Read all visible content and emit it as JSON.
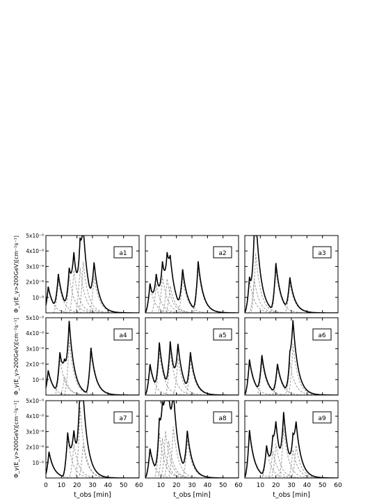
{
  "figure": {
    "ylabel": "Φ_γ(E_γ>200GeV)[cm⁻²s⁻¹]",
    "xlabel": "t_obs [min]"
  },
  "chart_data": {
    "type": "line",
    "shared_axes": true,
    "xlim": [
      0,
      60
    ],
    "ylim": [
      0,
      5e-09
    ],
    "x_ticks": [
      0,
      10,
      20,
      30,
      40,
      50,
      60
    ],
    "x_tick_labels_row3": [
      "0",
      "10",
      "20",
      "30",
      "40",
      "50",
      "60"
    ],
    "x_tick_labels_row3_col_other": [
      "10",
      "20",
      "30",
      "40",
      "50",
      "60"
    ],
    "y_ticks": [
      1e-09,
      2e-09,
      3e-09,
      4e-09,
      5e-09
    ],
    "y_tick_labels": [
      "10⁻⁹",
      "2x10⁻⁹",
      "3x10⁻⁹",
      "4x10⁻⁹",
      "5x10⁻⁹"
    ],
    "total_style": "solid-black",
    "component_style": "dashed-gray",
    "panels": [
      {
        "label": "a1",
        "flares": [
          [
            1.5,
            1.7
          ],
          [
            8,
            2.3
          ],
          [
            15,
            2.6
          ],
          [
            22,
            3.2
          ],
          [
            31,
            2.6
          ]
        ],
        "extra": [
          [
            18,
            3.0
          ],
          [
            24,
            3.6
          ]
        ]
      },
      {
        "label": "a2",
        "flares": [
          [
            3,
            1.9
          ],
          [
            7,
            2.0
          ],
          [
            11,
            2.6
          ],
          [
            14,
            2.4
          ],
          [
            24,
            2.5
          ],
          [
            34,
            3.2
          ]
        ],
        "extra": [
          [
            16,
            1.9
          ]
        ]
      },
      {
        "label": "a3",
        "flares": [
          [
            3,
            2.3
          ],
          [
            7,
            4.2
          ],
          [
            20,
            3.1
          ],
          [
            29,
            2.1
          ]
        ],
        "extra": [
          [
            6,
            2.4
          ]
        ]
      },
      {
        "label": "a4",
        "flares": [
          [
            1.5,
            1.6
          ],
          [
            9,
            2.6
          ],
          [
            15,
            3.9
          ],
          [
            29,
            3.0
          ]
        ],
        "extra": [
          [
            12,
            1.3
          ]
        ]
      },
      {
        "label": "a5",
        "flares": [
          [
            3,
            2.0
          ],
          [
            9,
            3.1
          ],
          [
            16,
            3.1
          ],
          [
            21,
            2.6
          ],
          [
            29,
            2.5
          ]
        ],
        "extra": []
      },
      {
        "label": "a6",
        "flares": [
          [
            3,
            2.3
          ],
          [
            11,
            2.4
          ],
          [
            21,
            1.9
          ],
          [
            31,
            3.6
          ]
        ],
        "extra": [
          [
            29,
            2.3
          ]
        ]
      },
      {
        "label": "a7",
        "flares": [
          [
            2,
            1.7
          ],
          [
            14,
            2.9
          ],
          [
            22,
            5.0
          ]
        ],
        "extra": [
          [
            18,
            2.4
          ],
          [
            24,
            2.4
          ]
        ]
      },
      {
        "label": "a8",
        "flares": [
          [
            3,
            1.9
          ],
          [
            9,
            3.2
          ],
          [
            13,
            3.3
          ],
          [
            18,
            3.6
          ],
          [
            27,
            2.7
          ]
        ],
        "extra": [
          [
            11,
            2.8
          ],
          [
            15,
            2.6
          ]
        ]
      },
      {
        "label": "a9",
        "flares": [
          [
            3,
            3.1
          ],
          [
            14,
            2.0
          ],
          [
            20,
            2.4
          ],
          [
            25,
            3.5
          ],
          [
            33,
            2.3
          ]
        ],
        "extra": [
          [
            18,
            1.9
          ],
          [
            31,
            2.0
          ]
        ]
      }
    ]
  }
}
